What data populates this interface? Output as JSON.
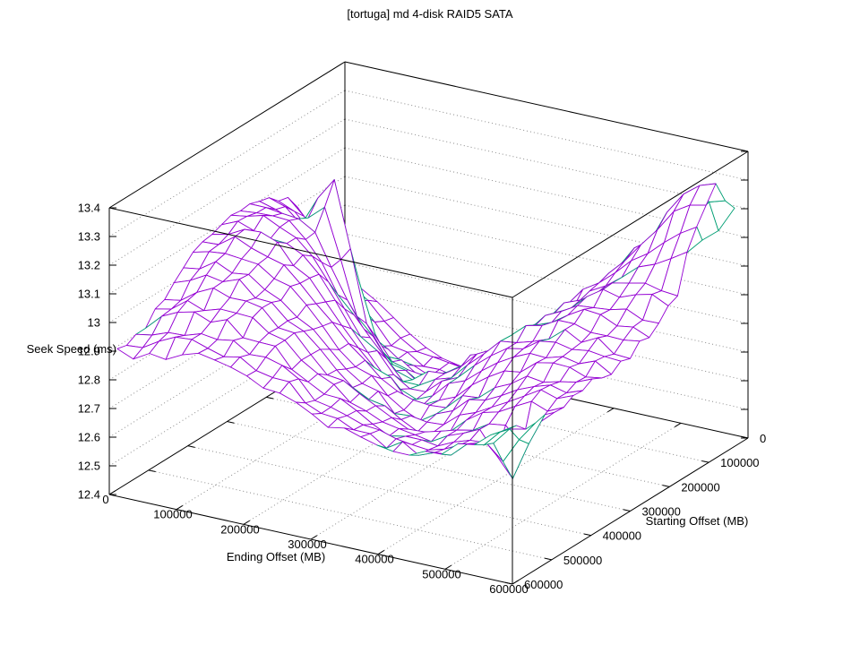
{
  "chart_data": {
    "type": "surface3d",
    "title": "[tortuga] md 4-disk RAID5 SATA",
    "xlabel": "Ending Offset (MB)",
    "ylabel": "Starting Offset (MB)",
    "zlabel": "Seek Speed (ms)",
    "xlim": [
      0,
      600000
    ],
    "ylim": [
      0,
      600000
    ],
    "zlim": [
      12.4,
      13.4
    ],
    "xticks": [
      0,
      100000,
      200000,
      300000,
      400000,
      500000,
      600000
    ],
    "yticks": [
      0,
      100000,
      200000,
      300000,
      400000,
      500000,
      600000
    ],
    "zticks": [
      12.4,
      12.5,
      12.6,
      12.7,
      12.8,
      12.9,
      13,
      13.1,
      13.2,
      13.3,
      13.4
    ],
    "grid": true,
    "legend": "none",
    "colors": {
      "surface_top": "#9400d3",
      "surface_underside": "#009e73",
      "grid_line": "#8c8c8c",
      "border": "#000000",
      "text": "#000000",
      "background": "#ffffff"
    },
    "surface": {
      "x": [
        0,
        48000,
        97000,
        145000,
        193000,
        242000,
        290000,
        338000,
        387000,
        435000,
        483000,
        532000,
        580000
      ],
      "y": [
        0,
        48000,
        97000,
        145000,
        193000,
        242000,
        290000,
        338000,
        387000,
        435000,
        483000,
        532000,
        580000
      ],
      "z": [
        [
          12.68,
          12.58,
          12.49,
          12.44,
          12.43,
          12.44,
          12.42,
          12.52,
          12.66,
          12.8,
          12.95,
          13.06,
          13.18
        ],
        [
          12.8,
          12.62,
          12.5,
          12.45,
          12.44,
          12.47,
          12.52,
          12.62,
          12.8,
          12.95,
          13.07,
          13.26,
          13.32
        ],
        [
          12.94,
          12.76,
          12.58,
          12.49,
          12.47,
          12.52,
          12.6,
          12.7,
          12.83,
          12.94,
          13.04,
          13.14,
          13.22
        ],
        [
          13.04,
          12.92,
          12.74,
          12.58,
          12.52,
          12.55,
          12.62,
          12.72,
          12.83,
          12.92,
          13.0,
          13.04,
          13.02
        ],
        [
          13.1,
          13.02,
          13.2,
          12.72,
          12.58,
          12.58,
          12.65,
          12.74,
          12.84,
          12.92,
          12.97,
          12.98,
          12.96
        ],
        [
          13.12,
          13.1,
          13.05,
          12.86,
          12.7,
          12.62,
          12.67,
          12.76,
          12.85,
          12.91,
          12.94,
          12.94,
          12.92
        ],
        [
          13.12,
          13.13,
          13.08,
          12.96,
          12.8,
          12.68,
          12.64,
          12.73,
          12.82,
          12.88,
          12.91,
          12.91,
          12.9
        ],
        [
          13.08,
          13.12,
          13.1,
          13.0,
          12.87,
          12.75,
          12.67,
          12.68,
          12.76,
          12.83,
          12.88,
          12.89,
          12.89
        ],
        [
          13.06,
          13.09,
          13.08,
          13.01,
          12.91,
          12.8,
          12.71,
          12.66,
          12.71,
          12.78,
          12.84,
          12.87,
          12.88
        ],
        [
          12.99,
          13.04,
          13.05,
          13.0,
          12.93,
          12.83,
          12.75,
          12.7,
          12.68,
          12.74,
          12.8,
          12.85,
          12.87
        ],
        [
          12.94,
          12.99,
          13.01,
          12.98,
          12.93,
          12.85,
          12.78,
          12.73,
          12.7,
          12.72,
          12.77,
          12.64,
          12.87
        ],
        [
          12.9,
          12.94,
          12.96,
          12.95,
          12.91,
          12.86,
          12.8,
          12.76,
          12.73,
          12.73,
          12.76,
          12.81,
          12.88
        ],
        [
          12.88,
          12.9,
          12.92,
          12.92,
          12.9,
          12.86,
          12.82,
          12.78,
          12.76,
          12.76,
          12.78,
          12.83,
          12.9
        ]
      ]
    },
    "render_hints": {
      "mesh_upsample": 2,
      "mesh_noise_ms": 0.045,
      "view": "gnuplot default (60 rot_x, 30 rot_z)"
    }
  }
}
